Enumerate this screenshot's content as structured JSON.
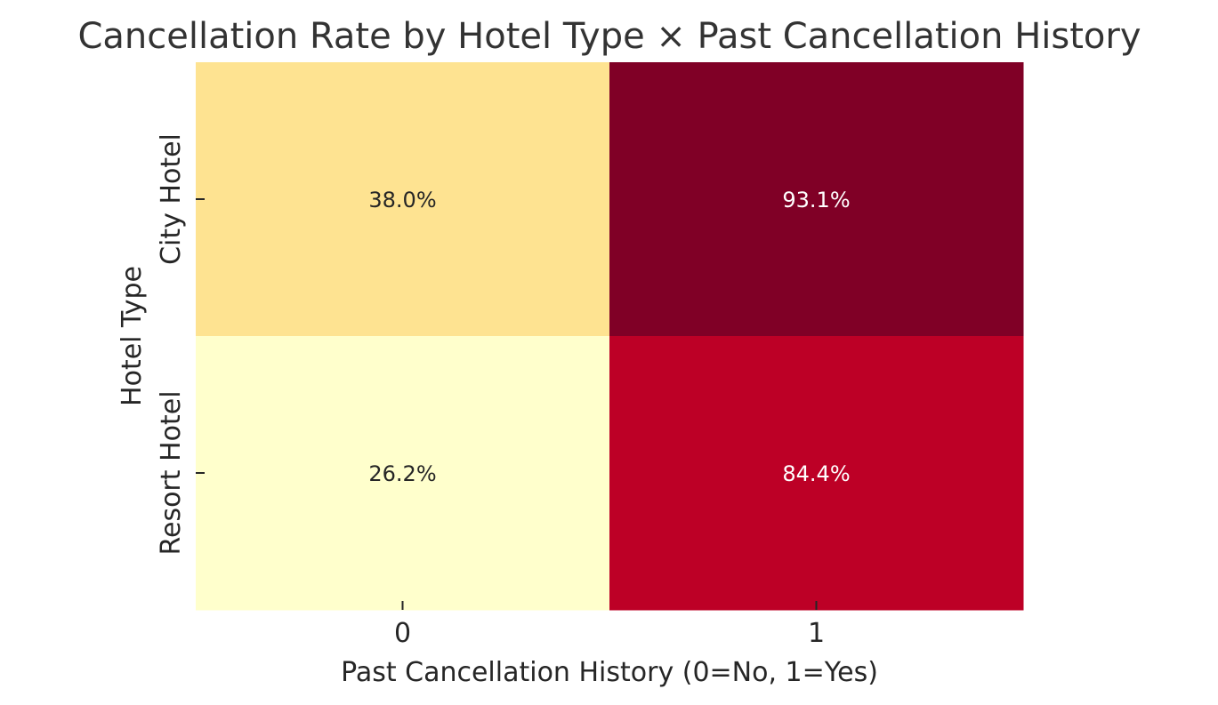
{
  "chart_data": {
    "type": "heatmap",
    "title": "Cancellation Rate by Hotel Type × Past Cancellation History",
    "xlabel": "Past Cancellation History (0=No, 1=Yes)",
    "ylabel": "Hotel Type",
    "x_categories": [
      "0",
      "1"
    ],
    "y_categories": [
      "City Hotel",
      "Resort Hotel"
    ],
    "values": [
      [
        38.0,
        93.1
      ],
      [
        26.2,
        84.4
      ]
    ],
    "value_labels": [
      [
        "38.0%",
        "93.1%"
      ],
      [
        "26.2%",
        "84.4%"
      ]
    ],
    "colormap": "YlOrRd",
    "cell_colors": [
      [
        "#fee391",
        "#800026"
      ],
      [
        "#ffffcc",
        "#bd0026"
      ]
    ],
    "label_colors": [
      [
        "#262626",
        "#ffffff"
      ],
      [
        "#262626",
        "#ffffff"
      ]
    ],
    "grid": false,
    "colorbar": false
  }
}
